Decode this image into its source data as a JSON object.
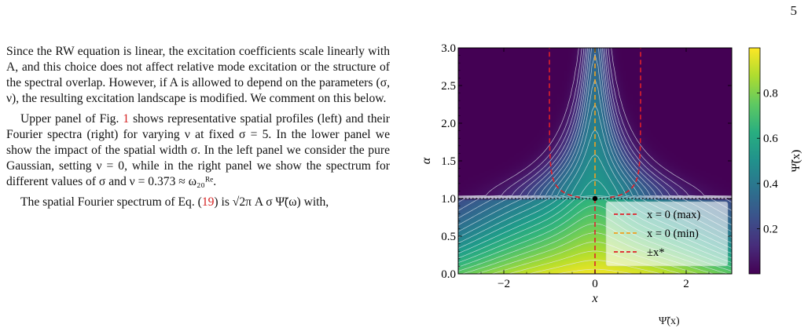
{
  "page_number": "5",
  "paragraphs": {
    "p1": "Since the RW equation is linear, the excitation coefficients scale linearly with A, and this choice does not affect relative mode excitation or the structure of the spectral overlap. However, if A is allowed to depend on the parameters (σ, ν), the resulting excitation landscape is modified. We comment on this below.",
    "p2_a": "Upper panel of Fig. ",
    "p2_ref": "1",
    "p2_b": " shows representative spatial profiles (left) and their Fourier spectra (right) for varying ν at fixed σ = 5. In the lower panel we show the impact of the spatial width σ. In the left panel we consider the pure Gaussian, setting ν = 0, while in the right panel we show the spectrum for different values of σ and ν = 0.373 ≈ ω₂₀ᴿᵉ.",
    "p3_a": "The spatial Fourier spectrum of Eq. (",
    "p3_ref": "19",
    "p3_b": ") is √2π A σ Ψ̃(ω) with,"
  },
  "bottom_fragment": "Ψ̃(x)",
  "chart_data": {
    "type": "heatmap",
    "xlabel": "x",
    "ylabel": "α",
    "xlim": [
      -3,
      3
    ],
    "ylim": [
      0,
      3
    ],
    "x_ticks": [
      "−2",
      "0",
      "2"
    ],
    "x_tick_values": [
      -2,
      0,
      2
    ],
    "y_ticks": [
      "0.0",
      "0.5",
      "1.0",
      "1.5",
      "2.0",
      "2.5",
      "3.0"
    ],
    "y_tick_values": [
      0,
      0.5,
      1,
      1.5,
      2,
      2.5,
      3
    ],
    "colorbar": {
      "label": "Ψ̃(x)",
      "ticks": [
        "0.2",
        "0.4",
        "0.6",
        "0.8"
      ],
      "tick_values": [
        0.2,
        0.4,
        0.6,
        0.8
      ],
      "range": [
        0,
        1
      ],
      "colormap": "viridis"
    },
    "threshold_alpha": 1.0,
    "critical_point": [
      0,
      1
    ],
    "legend": {
      "placement": "lower-right",
      "entries": [
        {
          "label": "x = 0 (max)",
          "color": "#e0202a",
          "style": "dashed"
        },
        {
          "label": "x = 0 (min)",
          "color": "#f0a020",
          "style": "dashed"
        },
        {
          "label": "±x*",
          "color": "#e0202a",
          "style": "dashed"
        }
      ]
    },
    "colors": {
      "max_line": "#e0202a",
      "min_line": "#f0a020",
      "pm_line": "#e0202a",
      "contour": "#dfe6ee"
    }
  }
}
